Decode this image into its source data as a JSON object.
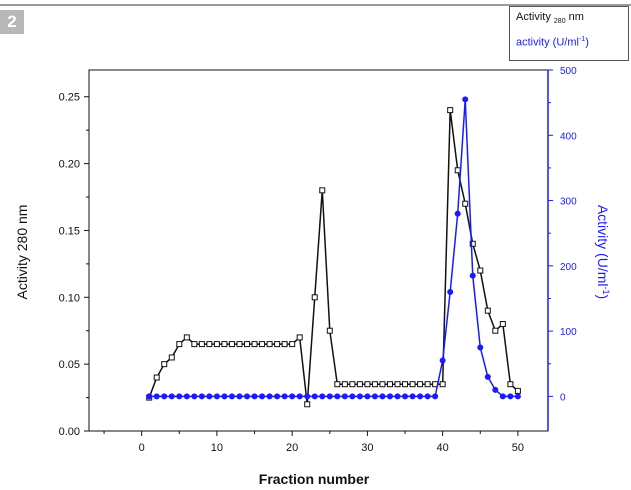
{
  "panel_label": "2",
  "legend": {
    "left_series_prefix": "Activity ",
    "left_series_sub": "280",
    "left_series_suffix": " nm",
    "right_series_prefix": "activity (U/ml",
    "right_series_sup": "-1",
    "right_series_suffix": ")"
  },
  "chart_data": {
    "type": "line",
    "title": "",
    "xlabel": "Fraction number",
    "ylabel_left": "Activity 280 nm",
    "ylabel_right": "Activity (U/ml",
    "ylabel_right_sup": "-1",
    "ylabel_right_suffix": ")",
    "xlim": [
      -7,
      54
    ],
    "ylim_left": [
      0,
      0.27
    ],
    "ylim_right": [
      -53,
      500
    ],
    "x_ticks": [
      0,
      10,
      20,
      30,
      40,
      50
    ],
    "x_tick_labels": [
      "0",
      "10",
      "20",
      "30",
      "40",
      "50"
    ],
    "y_left_ticks": [
      0,
      0.05,
      0.1,
      0.15,
      0.2,
      0.25
    ],
    "y_left_tick_labels": [
      "0.00",
      "0.05",
      "0.10",
      "0.15",
      "0.20",
      "0.25"
    ],
    "y_right_ticks": [
      0,
      100,
      200,
      300,
      400,
      500
    ],
    "y_right_tick_labels": [
      "0",
      "100",
      "200",
      "300",
      "400",
      "500"
    ],
    "legend_position": "top-right",
    "grid": false,
    "series": [
      {
        "axis": "left",
        "color": "#111111",
        "marker": "open-square",
        "x": [
          1,
          2,
          3,
          4,
          5,
          6,
          7,
          8,
          9,
          10,
          11,
          12,
          13,
          14,
          15,
          16,
          17,
          18,
          19,
          20,
          21,
          22,
          23,
          24,
          25,
          26,
          27,
          28,
          29,
          30,
          31,
          32,
          33,
          34,
          35,
          36,
          37,
          38,
          39,
          40,
          41,
          42,
          43,
          44,
          45,
          46,
          47,
          48,
          49,
          50
        ],
        "values": [
          0.025,
          0.04,
          0.05,
          0.055,
          0.065,
          0.07,
          0.065,
          0.065,
          0.065,
          0.065,
          0.065,
          0.065,
          0.065,
          0.065,
          0.065,
          0.065,
          0.065,
          0.065,
          0.065,
          0.065,
          0.07,
          0.02,
          0.1,
          0.18,
          0.075,
          0.035,
          0.035,
          0.035,
          0.035,
          0.035,
          0.035,
          0.035,
          0.035,
          0.035,
          0.035,
          0.035,
          0.035,
          0.035,
          0.035,
          0.035,
          0.24,
          0.195,
          0.17,
          0.14,
          0.12,
          0.09,
          0.075,
          0.08,
          0.035,
          0.03
        ]
      },
      {
        "axis": "right",
        "color": "#1a1aff",
        "marker": "filled-circle",
        "x": [
          1,
          2,
          3,
          4,
          5,
          6,
          7,
          8,
          9,
          10,
          11,
          12,
          13,
          14,
          15,
          16,
          17,
          18,
          19,
          20,
          21,
          22,
          23,
          24,
          25,
          26,
          27,
          28,
          29,
          30,
          31,
          32,
          33,
          34,
          35,
          36,
          37,
          38,
          39,
          40,
          41,
          42,
          43,
          44,
          45,
          46,
          47,
          48,
          49,
          50
        ],
        "values": [
          0,
          0,
          0,
          0,
          0,
          0,
          0,
          0,
          0,
          0,
          0,
          0,
          0,
          0,
          0,
          0,
          0,
          0,
          0,
          0,
          0,
          0,
          0,
          0,
          0,
          0,
          0,
          0,
          0,
          0,
          0,
          0,
          0,
          0,
          0,
          0,
          0,
          0,
          0,
          55,
          160,
          280,
          455,
          185,
          75,
          30,
          10,
          0,
          0,
          0
        ]
      }
    ]
  }
}
